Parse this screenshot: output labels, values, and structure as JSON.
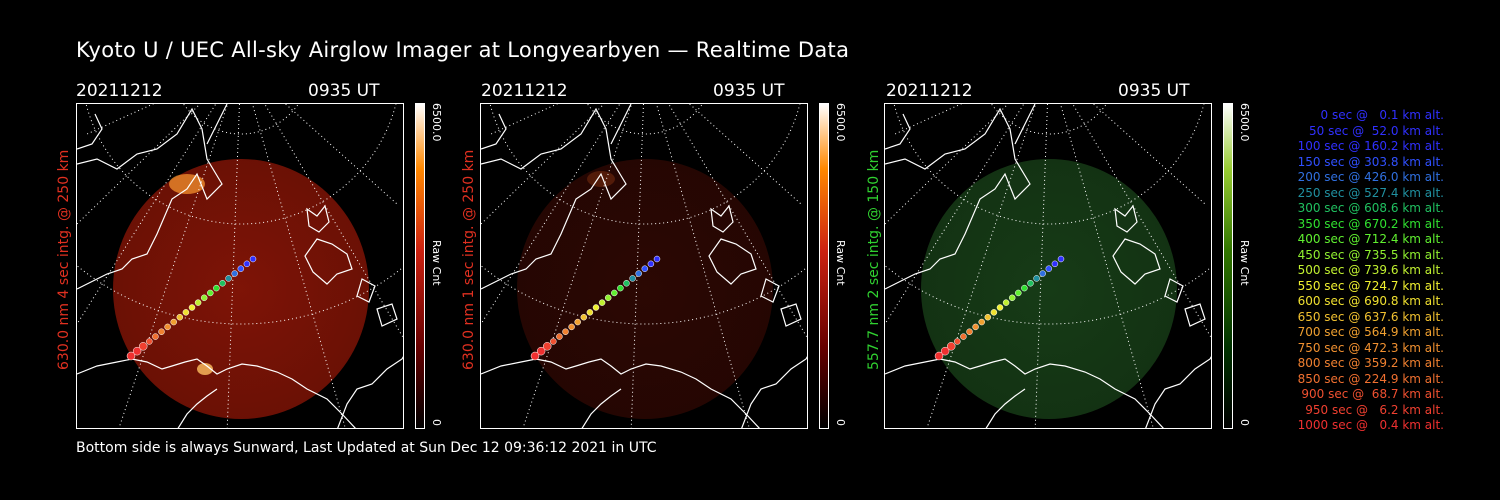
{
  "title": "Kyoto U / UEC All-sky Airglow Imager at Longyearbyen — Realtime Data",
  "footer": "Bottom side is always Sunward, Last Updated at Sun Dec 12 09:36:12 2021 in UTC",
  "panels": [
    {
      "date": "20211212",
      "time": "0935 UT",
      "side_label": "630.0 nm 4 sec intg. @ 250 km",
      "side_color": "#e03020",
      "cbar_max": "6500.0",
      "cbar_min": "0",
      "cbar_unit": "Raw Cnt",
      "tint": "#a81a08",
      "tint_opacity": 0.75
    },
    {
      "date": "20211212",
      "time": "0935 UT",
      "side_label": "630.0 nm 1 sec intg. @ 250 km",
      "side_color": "#e03020",
      "cbar_max": "6500.0",
      "cbar_min": "0",
      "cbar_unit": "Raw Cnt",
      "tint": "#3a0a04",
      "tint_opacity": 0.75
    },
    {
      "date": "20211212",
      "time": "0935 UT",
      "side_label": "557.7 nm 2 sec intg. @ 150 km",
      "side_color": "#30d030",
      "cbar_max": "6500.0",
      "cbar_min": "0",
      "cbar_unit": "Raw Cnt",
      "tint": "#1c4a1c",
      "tint_opacity": 0.8
    }
  ],
  "legend": [
    {
      "text": "   0 sec @   0.1 km alt.",
      "color": "#3030ff"
    },
    {
      "text": "  50 sec @  52.0 km alt.",
      "color": "#3030ff"
    },
    {
      "text": " 100 sec @ 160.2 km alt.",
      "color": "#3030ff"
    },
    {
      "text": " 150 sec @ 303.8 km alt.",
      "color": "#3050ff"
    },
    {
      "text": " 200 sec @ 426.0 km alt.",
      "color": "#3070e0"
    },
    {
      "text": " 250 sec @ 527.4 km alt.",
      "color": "#2090a0"
    },
    {
      "text": " 300 sec @ 608.6 km alt.",
      "color": "#20c060"
    },
    {
      "text": " 350 sec @ 670.2 km alt.",
      "color": "#30e030"
    },
    {
      "text": " 400 sec @ 712.4 km alt.",
      "color": "#60f030"
    },
    {
      "text": " 450 sec @ 735.5 km alt.",
      "color": "#90f030"
    },
    {
      "text": " 500 sec @ 739.6 km alt.",
      "color": "#c0f030"
    },
    {
      "text": " 550 sec @ 724.7 km alt.",
      "color": "#f0f030"
    },
    {
      "text": " 600 sec @ 690.8 km alt.",
      "color": "#f0e030"
    },
    {
      "text": " 650 sec @ 637.6 km alt.",
      "color": "#f0c030"
    },
    {
      "text": " 700 sec @ 564.9 km alt.",
      "color": "#f0a030"
    },
    {
      "text": " 750 sec @ 472.3 km alt.",
      "color": "#f09030"
    },
    {
      "text": " 800 sec @ 359.2 km alt.",
      "color": "#f08030"
    },
    {
      "text": " 850 sec @ 224.9 km alt.",
      "color": "#f07030"
    },
    {
      "text": " 900 sec @  68.7 km alt.",
      "color": "#f05030"
    },
    {
      "text": " 950 sec @   6.2 km alt.",
      "color": "#f04030"
    },
    {
      "text": "1000 sec @   0.4 km alt.",
      "color": "#f03030"
    }
  ],
  "colors": {
    "track_points": [
      "#3030ff",
      "#3030ff",
      "#3050ff",
      "#3070e0",
      "#2090a0",
      "#20c060",
      "#30e030",
      "#60f030",
      "#90f030",
      "#c0f030",
      "#f0f030",
      "#f0e030",
      "#f0c030",
      "#f0a030",
      "#f09030",
      "#f08030",
      "#f07030",
      "#f05030",
      "#f04030",
      "#f03030",
      "#f03030"
    ]
  }
}
